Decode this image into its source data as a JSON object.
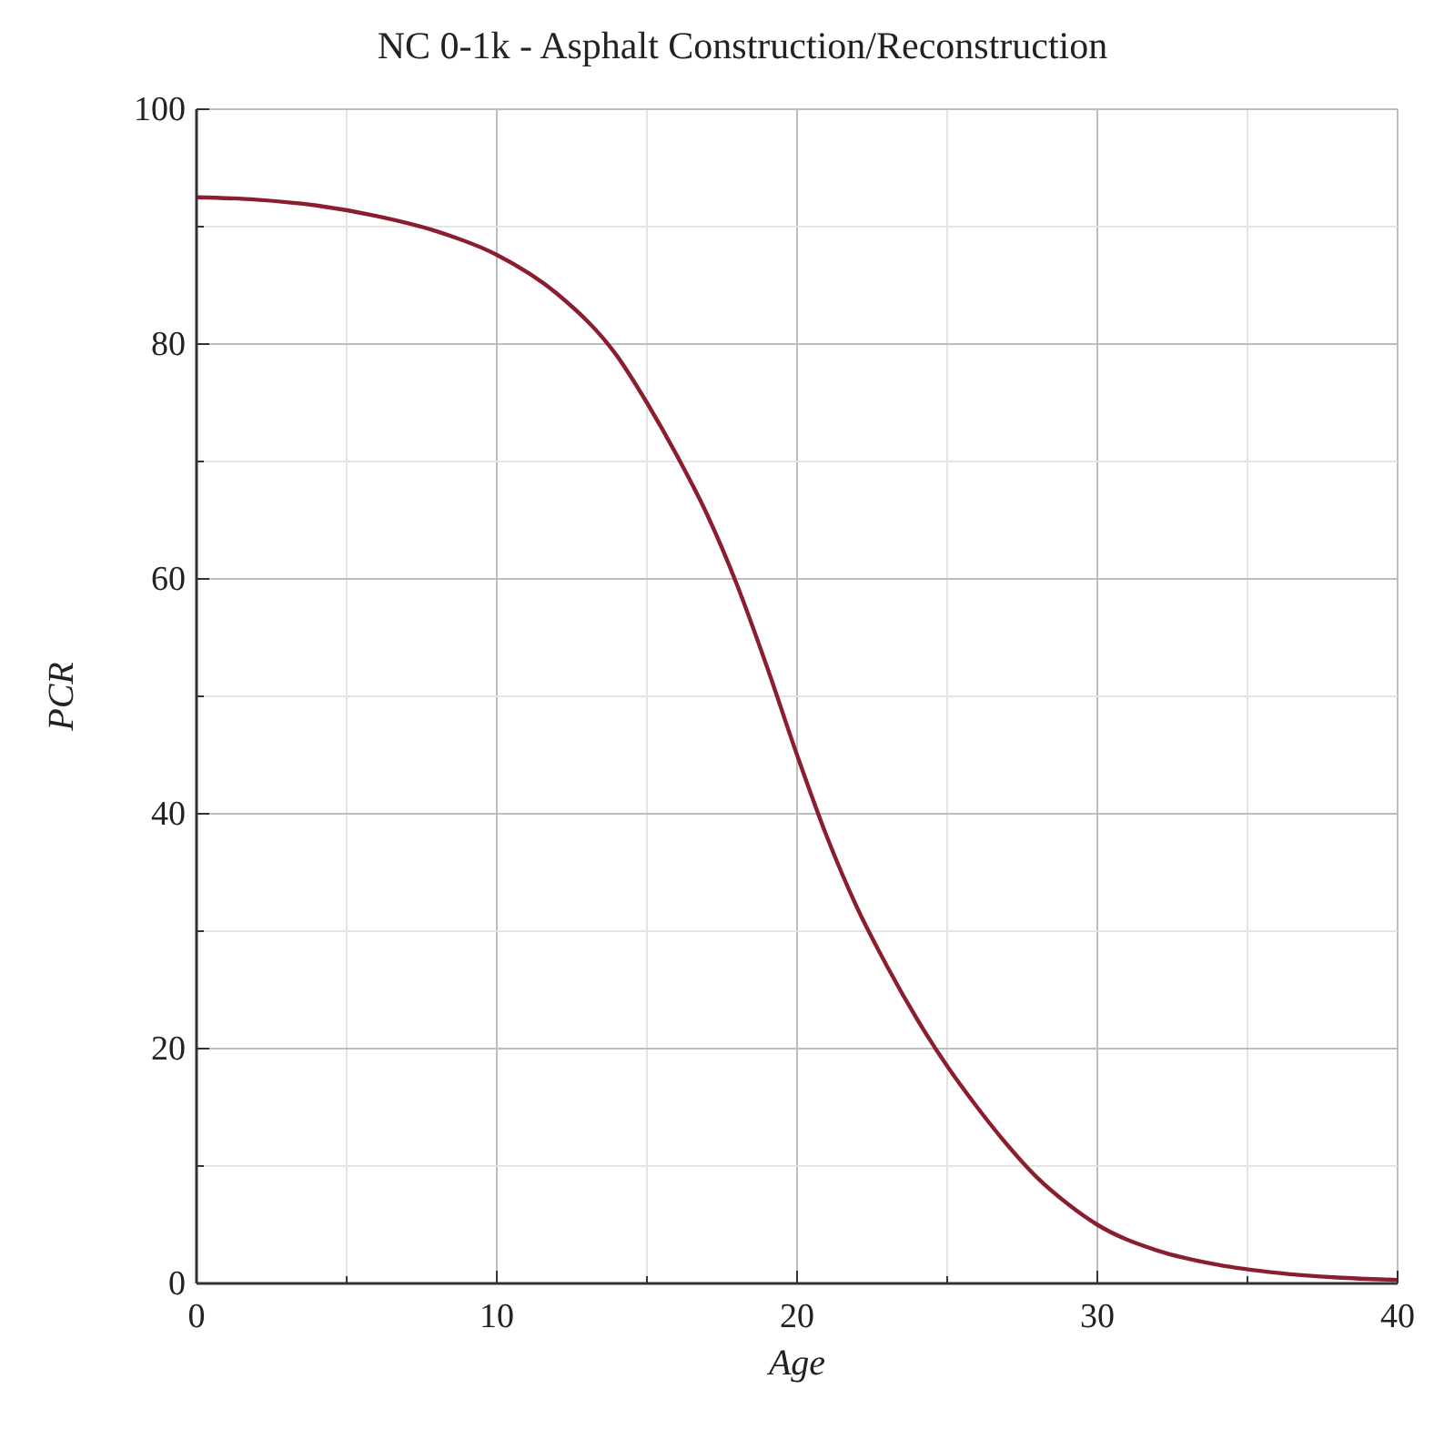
{
  "chart_data": {
    "type": "line",
    "title": "NC 0-1k - Asphalt Construction/Reconstruction",
    "xlabel": "Age",
    "ylabel": "PCR",
    "x": [
      0,
      2,
      4,
      6,
      8,
      10,
      12,
      14,
      15,
      16,
      17,
      18,
      19,
      20,
      21,
      22,
      23,
      24,
      25,
      26,
      27,
      28,
      29,
      30,
      32,
      34,
      36,
      38,
      40
    ],
    "series": [
      {
        "color": "#8b1e2e",
        "values": [
          92.5,
          92.3,
          91.8,
          90.9,
          89.6,
          87.6,
          84.3,
          79,
          75,
          70.5,
          65.5,
          59.5,
          52.5,
          45,
          38,
          32,
          27,
          22.5,
          18.5,
          15,
          11.8,
          9,
          6.8,
          5,
          2.8,
          1.6,
          0.9,
          0.5,
          0.3
        ]
      }
    ],
    "xlim": [
      0,
      40
    ],
    "ylim": [
      0,
      100
    ],
    "xticks": [
      0,
      {
        "value": 5,
        "label": null
      },
      10,
      {
        "value": 15,
        "label": null
      },
      20,
      {
        "value": 25,
        "label": null
      },
      30,
      {
        "value": 35,
        "label": null
      },
      40
    ],
    "yticks": [
      0,
      {
        "value": 10,
        "label": null
      },
      20,
      {
        "value": 30,
        "label": null
      },
      40,
      {
        "value": 50,
        "label": null
      },
      60,
      {
        "value": 70,
        "label": null
      },
      80,
      {
        "value": 90,
        "label": null
      },
      100
    ],
    "grid": true,
    "marker": "none",
    "line_style": "solid"
  }
}
